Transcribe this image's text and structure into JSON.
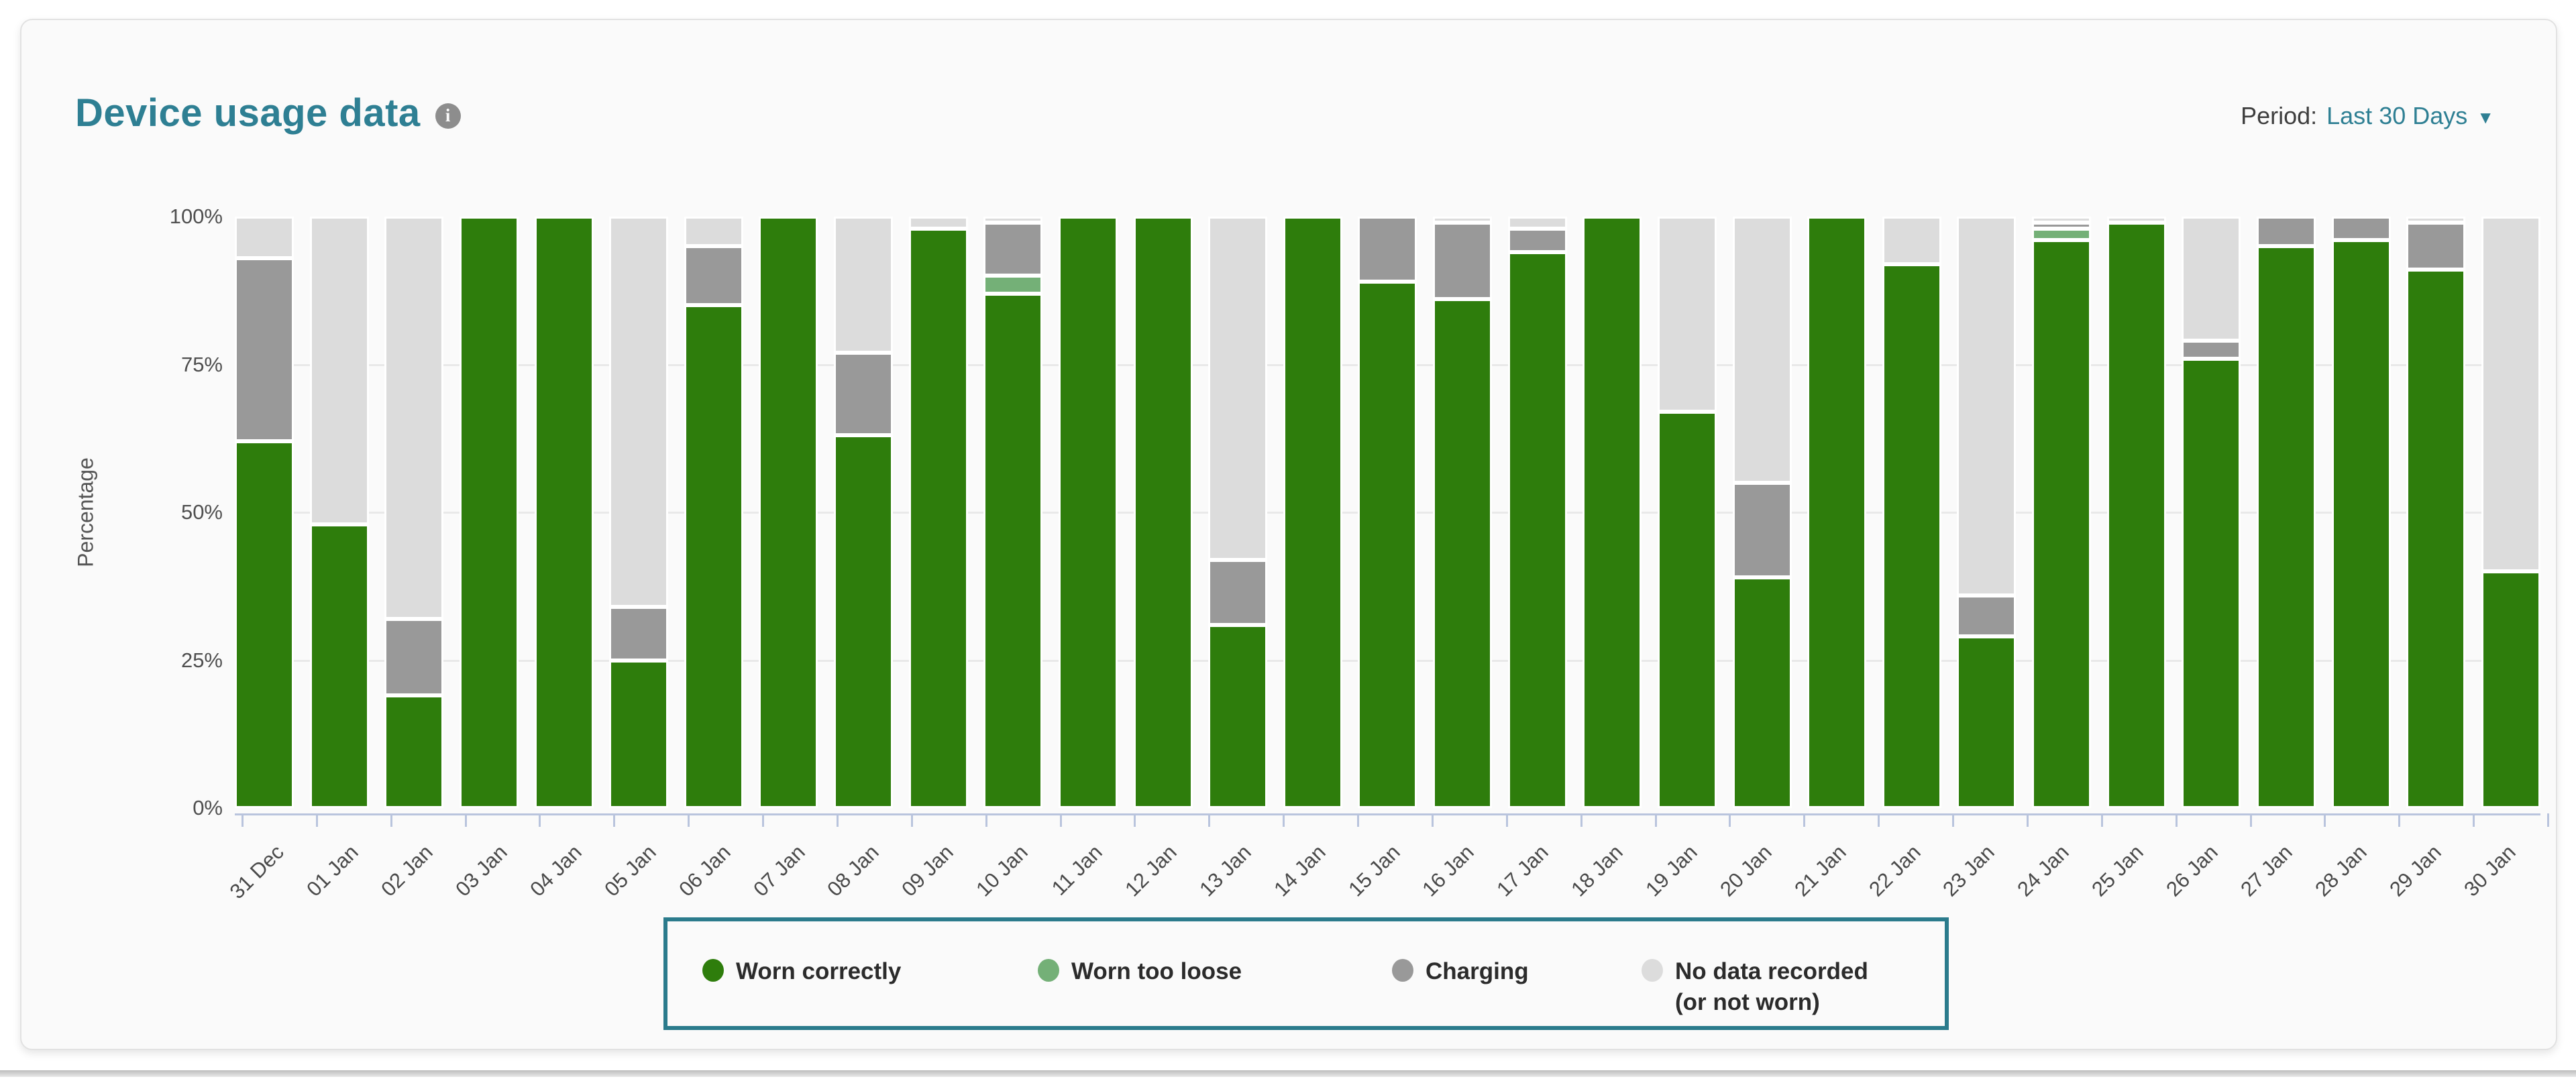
{
  "page": {
    "title": "Device usage data"
  },
  "period": {
    "label": "Period:",
    "value": "Last 30 Days",
    "caret": "▼"
  },
  "colors": {
    "worn_correctly": "#2e7d0c",
    "worn_too_loose": "#74b077",
    "charging": "#999999",
    "no_data": "#dcdcdc",
    "accent_teal": "#2e7f93",
    "axis_line": "#b9c4dd",
    "grid_line": "#e9e9e9"
  },
  "chart_data": {
    "type": "bar",
    "stacked": true,
    "title": "Device usage data",
    "xlabel": "",
    "ylabel": "Percentage",
    "ylim": [
      0,
      100
    ],
    "y_ticks": [
      "100%",
      "75%",
      "50%",
      "25%",
      "0%"
    ],
    "grid": true,
    "legend_position": "bottom",
    "categories": [
      "31 Dec",
      "01 Jan",
      "02 Jan",
      "03 Jan",
      "04 Jan",
      "05 Jan",
      "06 Jan",
      "07 Jan",
      "08 Jan",
      "09 Jan",
      "10 Jan",
      "11 Jan",
      "12 Jan",
      "13 Jan",
      "14 Jan",
      "15 Jan",
      "16 Jan",
      "17 Jan",
      "18 Jan",
      "19 Jan",
      "20 Jan",
      "21 Jan",
      "22 Jan",
      "23 Jan",
      "24 Jan",
      "25 Jan",
      "26 Jan",
      "27 Jan",
      "28 Jan",
      "29 Jan",
      "30 Jan"
    ],
    "series": [
      {
        "name": "Worn correctly",
        "key": "worn_correctly",
        "values": [
          62,
          48,
          19,
          100,
          100,
          25,
          85,
          100,
          63,
          98,
          87,
          100,
          100,
          31,
          100,
          89,
          86,
          94,
          100,
          67,
          39,
          100,
          92,
          29,
          96,
          99,
          76,
          95,
          96,
          91,
          40
        ]
      },
      {
        "name": "Worn too loose",
        "key": "worn_too_loose",
        "values": [
          0,
          0,
          0,
          0,
          0,
          0,
          0,
          0,
          0,
          0,
          3,
          0,
          0,
          0,
          0,
          0,
          0,
          0,
          0,
          0,
          0,
          0,
          0,
          0,
          2,
          0,
          0,
          0,
          0,
          0,
          0
        ]
      },
      {
        "name": "Charging",
        "key": "charging",
        "values": [
          31,
          0,
          13,
          0,
          0,
          9,
          10,
          0,
          14,
          0,
          9,
          0,
          0,
          11,
          0,
          11,
          13,
          4,
          0,
          0,
          16,
          0,
          0,
          7,
          1,
          0,
          3,
          5,
          4,
          8,
          0
        ]
      },
      {
        "name": "No data recorded (or not worn)",
        "key": "no_data",
        "values": [
          7,
          52,
          68,
          0,
          0,
          66,
          5,
          0,
          23,
          2,
          1,
          0,
          0,
          58,
          0,
          0,
          1,
          2,
          0,
          33,
          45,
          0,
          8,
          64,
          1,
          1,
          21,
          0,
          0,
          1,
          60
        ]
      }
    ]
  },
  "legend": {
    "items": [
      {
        "label": "Worn correctly",
        "key": "worn_correctly"
      },
      {
        "label": "Worn too loose",
        "key": "worn_too_loose"
      },
      {
        "label": "Charging",
        "key": "charging"
      },
      {
        "label": "No data recorded\n(or not worn)",
        "key": "no_data"
      }
    ]
  }
}
